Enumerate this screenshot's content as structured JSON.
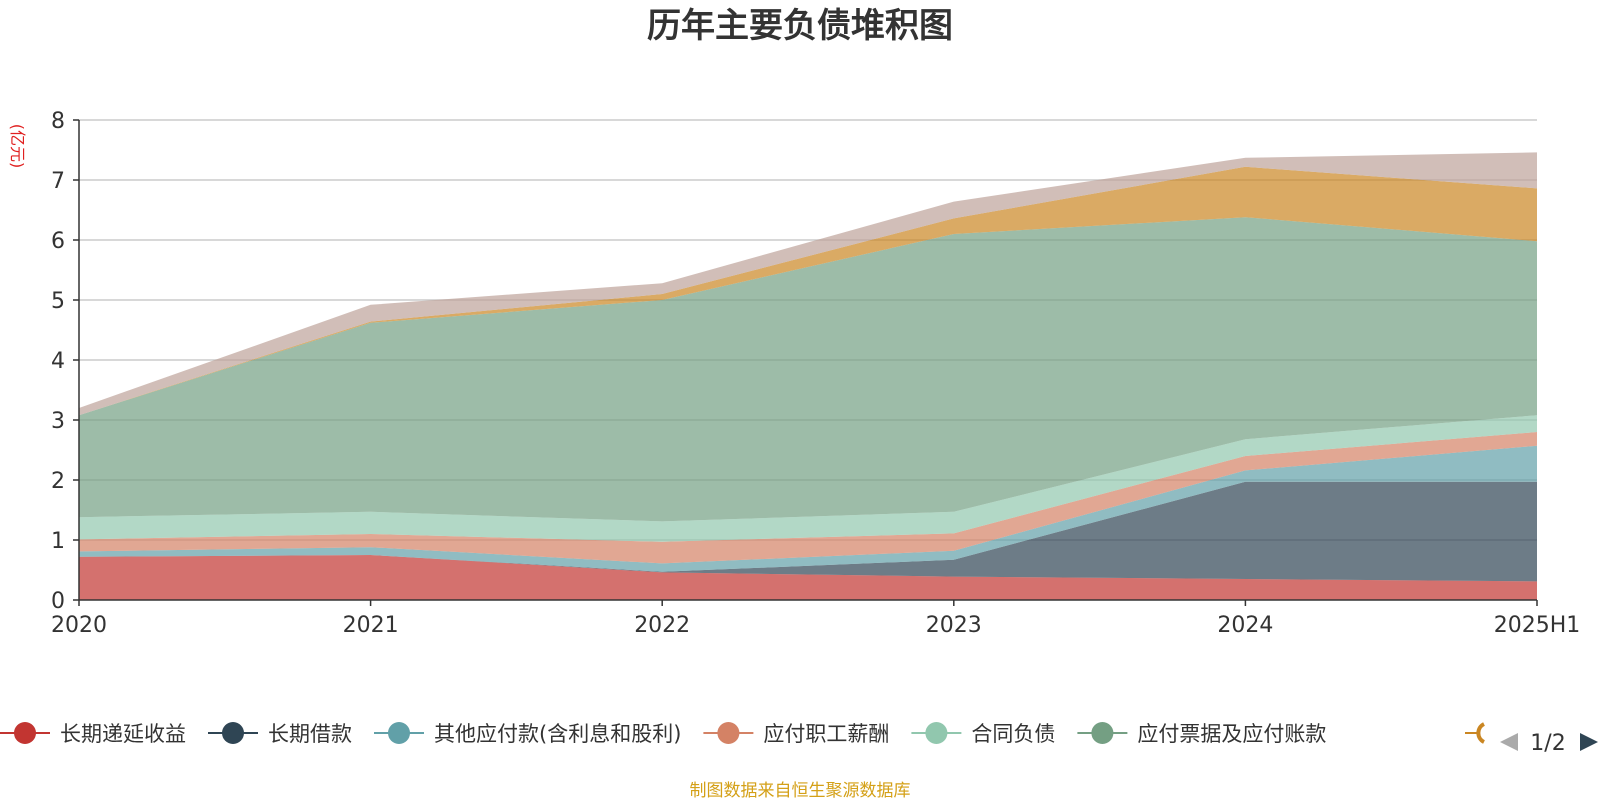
{
  "chart_data": {
    "type": "area",
    "stacked": true,
    "title": "历年主要负债堆积图",
    "unit_label": "(亿元)",
    "categories": [
      "2020",
      "2021",
      "2022",
      "2023",
      "2024",
      "2025H1"
    ],
    "ylim": [
      0,
      8
    ],
    "yticks": [
      0,
      1,
      2,
      3,
      4,
      5,
      6,
      7,
      8
    ],
    "grid": true,
    "legend_position": "bottom",
    "series": [
      {
        "name": "长期递延收益",
        "color": "#c23531",
        "values": [
          0.72,
          0.75,
          0.46,
          0.39,
          0.35,
          0.31
        ]
      },
      {
        "name": "长期借款",
        "color": "#2f4554",
        "values": [
          0.0,
          0.0,
          0.01,
          0.28,
          1.62,
          1.66
        ]
      },
      {
        "name": "其他应付款(含利息和股利)",
        "color": "#61a0a8",
        "values": [
          0.09,
          0.13,
          0.14,
          0.15,
          0.19,
          0.6
        ]
      },
      {
        "name": "应付职工薪酬",
        "color": "#d48265",
        "values": [
          0.2,
          0.22,
          0.36,
          0.29,
          0.24,
          0.23
        ]
      },
      {
        "name": "合同负债",
        "color": "#91c7ae",
        "values": [
          0.37,
          0.37,
          0.34,
          0.36,
          0.28,
          0.28
        ]
      },
      {
        "name": "应付票据及应付账款",
        "color": "#749f83",
        "values": [
          1.7,
          3.15,
          3.69,
          4.63,
          3.7,
          2.9
        ]
      },
      {
        "name": "",
        "color": "#ca8622",
        "values": [
          0.0,
          0.02,
          0.1,
          0.26,
          0.84,
          0.88
        ]
      },
      {
        "name": "",
        "color": "#bda29a",
        "values": [
          0.12,
          0.28,
          0.18,
          0.28,
          0.15,
          0.6
        ]
      }
    ],
    "legend_visible": [
      "长期递延收益",
      "长期借款",
      "其他应付款(含利息和股利)",
      "应付职工薪酬",
      "合同负债",
      "应付票据及应付账款"
    ],
    "legend_page": "1/2"
  },
  "source_note": "制图数据来自恒生聚源数据库"
}
